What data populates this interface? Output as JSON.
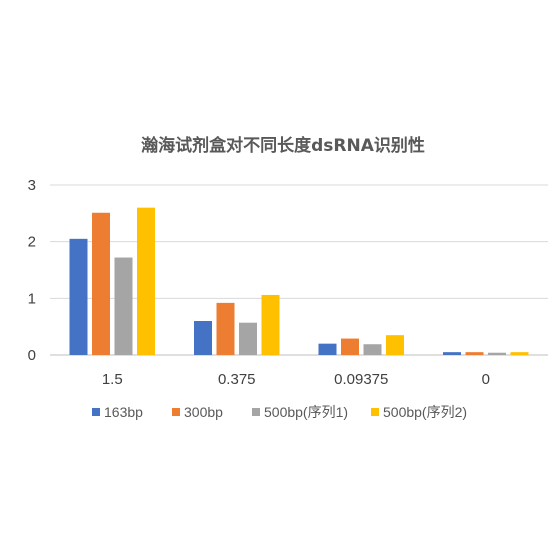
{
  "chart_data": {
    "type": "bar",
    "title": "瀚海试剂盒对不同长度dsRNA识别性",
    "xlabel": "",
    "ylabel": "",
    "categories": [
      "1.5",
      "0.375",
      "0.09375",
      "0"
    ],
    "ylim": [
      0,
      3
    ],
    "yticks": [
      "0",
      "1",
      "2",
      "3"
    ],
    "grid": true,
    "legend_position": "bottom",
    "series": [
      {
        "name": "163bp",
        "color": "#4472C4",
        "values": [
          2.05,
          0.6,
          0.2,
          0.05
        ]
      },
      {
        "name": "300bp",
        "color": "#ED7D31",
        "values": [
          2.51,
          0.92,
          0.29,
          0.05
        ]
      },
      {
        "name": "500bp(序列1)",
        "color": "#A5A5A5",
        "values": [
          1.72,
          0.57,
          0.19,
          0.04
        ]
      },
      {
        "name": "500bp(序列2)",
        "color": "#FFC000",
        "values": [
          2.6,
          1.06,
          0.35,
          0.05
        ]
      }
    ]
  }
}
